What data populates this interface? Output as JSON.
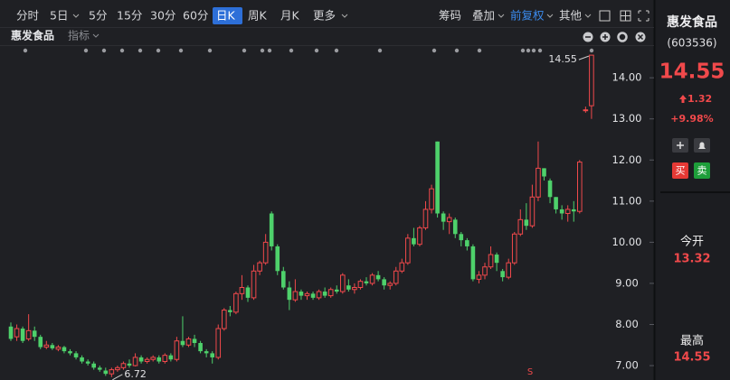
{
  "toolbar": {
    "left": [
      "分时",
      "5日",
      "5分",
      "15分",
      "30分",
      "60分",
      "日K",
      "周K",
      "月K",
      "更多"
    ],
    "right": [
      "筹码",
      "叠加",
      "前复权",
      "其他"
    ]
  },
  "chart_data": {
    "type": "candlestick",
    "title": "惠发食品",
    "indicator": "指标",
    "up_color": "#f0494b",
    "down_color": "#4ed16b",
    "open": [
      7.95,
      7.7,
      7.9,
      7.65,
      7.85,
      7.7,
      7.45,
      7.5,
      7.4,
      7.45,
      7.35,
      7.3,
      7.2,
      7.1,
      7.05,
      6.95,
      6.88,
      6.8,
      6.9,
      6.95,
      7.05,
      7.0,
      7.2,
      7.1,
      7.15,
      7.2,
      7.1,
      7.25,
      7.15,
      7.6,
      7.5,
      7.65,
      7.55,
      7.35,
      7.3,
      7.2,
      7.9,
      8.35,
      8.3,
      8.75,
      8.9,
      8.65,
      9.3,
      9.5,
      10.7,
      9.9,
      9.3,
      8.9,
      8.6,
      8.8,
      8.7,
      8.75,
      8.65,
      8.8,
      8.7,
      8.85,
      8.8,
      8.95,
      8.85,
      8.9,
      9.05,
      9.0,
      9.2,
      9.1,
      8.95,
      9.0,
      9.3,
      9.5,
      10.1,
      9.95,
      10.35,
      10.8,
      12.45,
      10.7,
      10.5,
      10.55,
      10.2,
      10.05,
      9.9,
      9.1,
      9.2,
      9.4,
      9.7,
      9.3,
      9.15,
      9.5,
      10.2,
      10.55,
      10.4,
      11.1,
      11.8,
      11.5,
      11.1,
      10.8,
      10.7,
      10.8,
      10.75,
      13.22,
      13.32
    ],
    "high": [
      8.05,
      8.0,
      7.95,
      8.25,
      7.95,
      7.75,
      7.6,
      7.55,
      7.5,
      7.48,
      7.4,
      7.35,
      7.25,
      7.15,
      7.1,
      7.0,
      6.95,
      6.95,
      7.0,
      7.1,
      7.15,
      7.3,
      7.25,
      7.2,
      7.25,
      7.25,
      7.3,
      7.3,
      7.7,
      8.2,
      7.7,
      7.75,
      7.6,
      7.4,
      7.35,
      8.0,
      8.4,
      8.45,
      8.8,
      9.2,
      8.95,
      9.45,
      9.55,
      10.2,
      10.75,
      9.95,
      9.4,
      9.05,
      9.1,
      8.85,
      8.8,
      8.8,
      8.85,
      8.9,
      8.9,
      8.95,
      9.25,
      9.1,
      9.0,
      9.1,
      9.15,
      9.25,
      9.3,
      9.15,
      9.05,
      9.4,
      9.6,
      10.2,
      10.35,
      10.4,
      11.0,
      11.4,
      12.45,
      10.75,
      10.7,
      10.6,
      10.25,
      10.1,
      9.95,
      9.3,
      9.5,
      9.9,
      9.75,
      9.35,
      9.6,
      10.25,
      10.8,
      10.95,
      11.4,
      12.45,
      11.8,
      11.55,
      11.1,
      10.9,
      10.9,
      11.0,
      12.0,
      13.3,
      14.55
    ],
    "low": [
      7.6,
      7.6,
      7.55,
      7.6,
      7.6,
      7.4,
      7.4,
      7.38,
      7.35,
      7.3,
      7.25,
      7.15,
      7.05,
      7.0,
      6.9,
      6.85,
      6.75,
      6.72,
      6.85,
      6.9,
      6.95,
      6.98,
      7.05,
      7.05,
      7.1,
      7.05,
      7.05,
      7.1,
      7.1,
      7.45,
      7.45,
      7.45,
      7.3,
      7.2,
      7.05,
      7.15,
      7.85,
      8.2,
      8.25,
      8.6,
      8.55,
      8.6,
      9.2,
      9.45,
      9.8,
      9.2,
      8.85,
      8.35,
      8.55,
      8.6,
      8.6,
      8.6,
      8.6,
      8.65,
      8.65,
      8.75,
      8.75,
      8.8,
      8.75,
      8.85,
      8.95,
      8.95,
      9.05,
      8.85,
      8.85,
      8.95,
      9.25,
      9.45,
      9.9,
      9.9,
      10.3,
      10.7,
      10.6,
      10.3,
      10.2,
      10.1,
      9.9,
      9.8,
      9.05,
      9.0,
      9.1,
      9.35,
      9.3,
      9.05,
      9.1,
      9.45,
      10.15,
      10.3,
      10.35,
      11.0,
      11.5,
      10.95,
      10.7,
      10.55,
      10.5,
      10.5,
      10.7,
      13.15,
      13.0
    ],
    "close": [
      7.65,
      7.9,
      7.6,
      7.85,
      7.7,
      7.45,
      7.5,
      7.42,
      7.45,
      7.35,
      7.3,
      7.2,
      7.1,
      7.05,
      6.95,
      6.9,
      6.8,
      6.9,
      6.95,
      7.05,
      7.0,
      7.2,
      7.1,
      7.15,
      7.2,
      7.1,
      7.25,
      7.15,
      7.6,
      7.5,
      7.65,
      7.55,
      7.35,
      7.3,
      7.2,
      7.9,
      8.35,
      8.3,
      8.75,
      8.9,
      8.65,
      9.3,
      9.5,
      10.0,
      9.9,
      9.3,
      8.9,
      8.6,
      8.8,
      8.7,
      8.75,
      8.65,
      8.8,
      8.7,
      8.85,
      8.8,
      9.2,
      8.85,
      8.9,
      9.05,
      9.0,
      9.2,
      9.1,
      8.95,
      9.0,
      9.3,
      9.5,
      10.1,
      9.95,
      10.35,
      10.8,
      11.3,
      10.7,
      10.5,
      10.6,
      10.2,
      10.05,
      9.9,
      9.1,
      9.2,
      9.4,
      9.7,
      9.5,
      9.15,
      9.5,
      10.2,
      10.55,
      10.4,
      11.1,
      11.8,
      11.6,
      11.1,
      10.8,
      10.7,
      10.8,
      10.75,
      11.95,
      13.22,
      14.55
    ],
    "ylim": [
      6.65,
      14.75
    ],
    "yticks": [
      {
        "value": 7,
        "label": "7.00"
      },
      {
        "value": 8,
        "label": "8.00"
      },
      {
        "value": 9,
        "label": "9.00"
      },
      {
        "value": 10,
        "label": "10.00"
      },
      {
        "value": 11,
        "label": "11.00"
      },
      {
        "value": 12,
        "label": "12.00"
      },
      {
        "value": 13,
        "label": "13.00"
      },
      {
        "value": 14,
        "label": "14.00"
      }
    ],
    "grid": false,
    "annotations": {
      "high_label": "14.55",
      "low_label": "6.72",
      "signal": "S"
    }
  },
  "sidebar": {
    "name": "惠发食品",
    "code": "(603536)",
    "price": "14.55",
    "change": "1.32",
    "change_pct": "+9.98%",
    "buy": "买",
    "sell": "卖",
    "open_label": "今开",
    "open_value": "13.32",
    "high_label": "最高",
    "high_value": "14.55"
  }
}
